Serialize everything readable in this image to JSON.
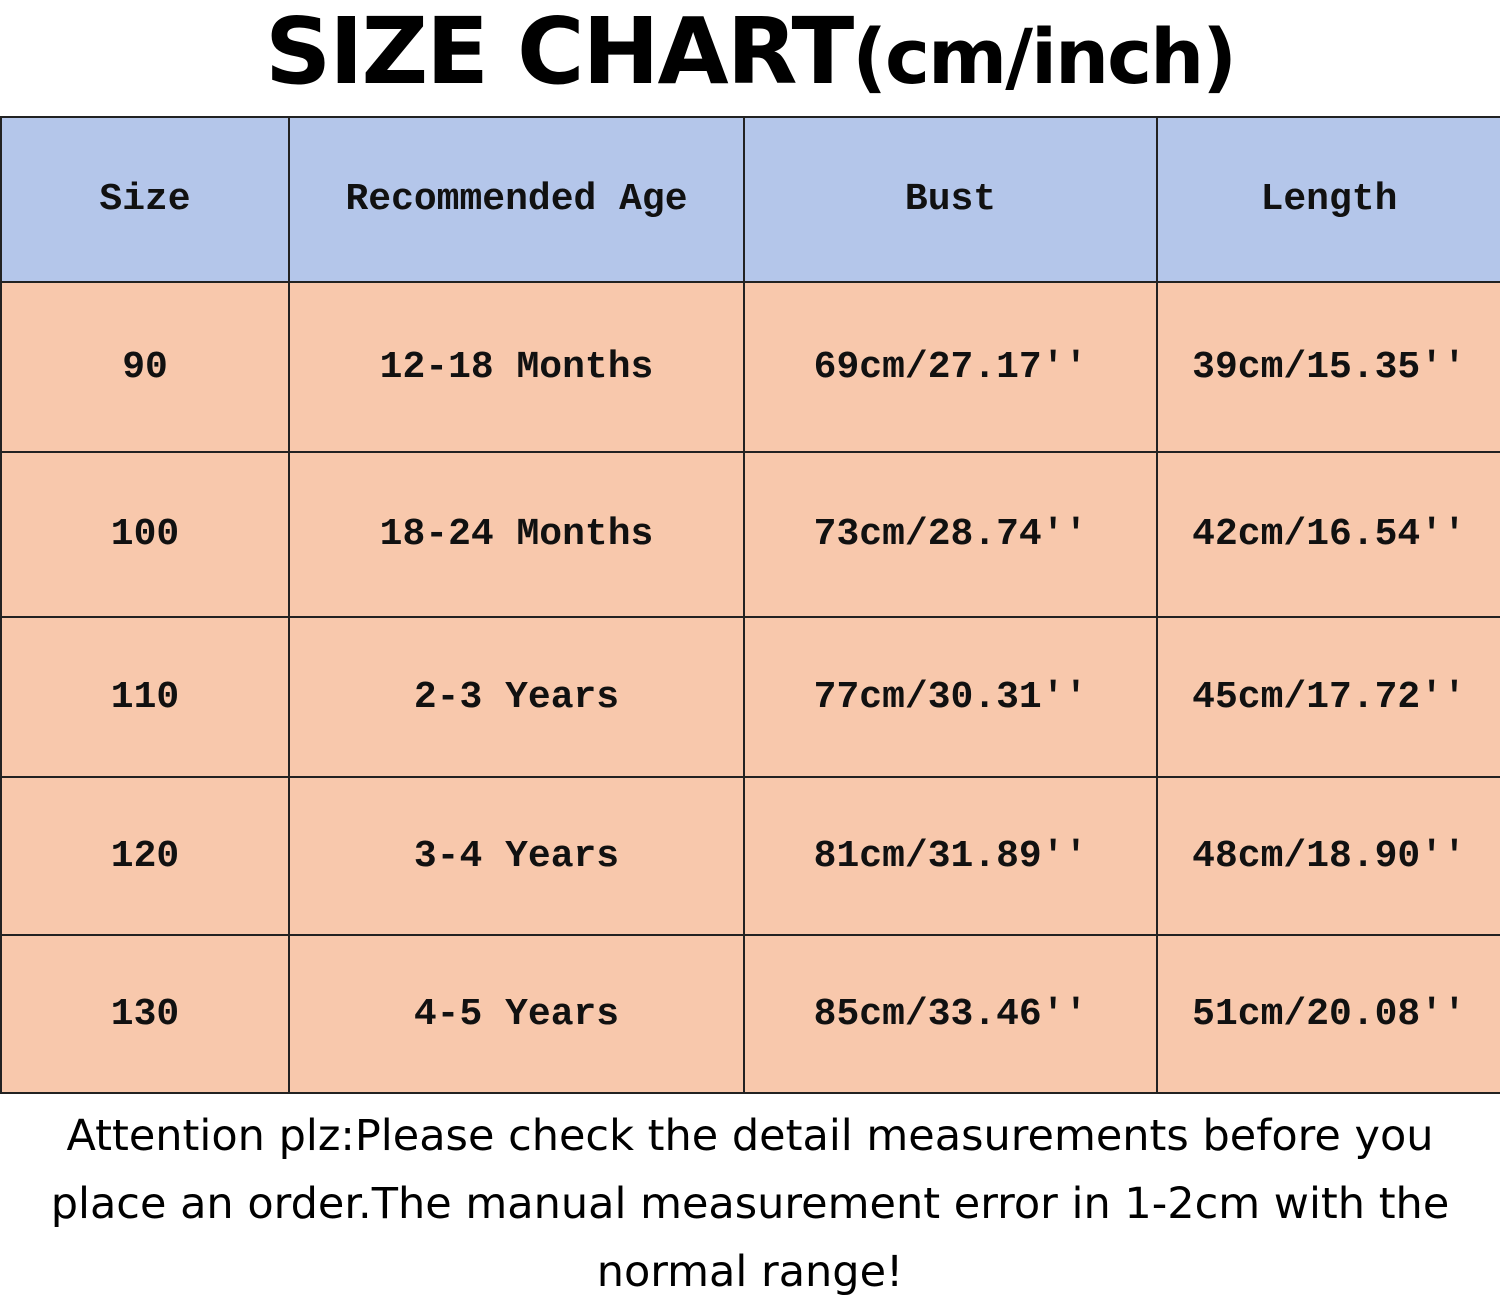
{
  "header": {
    "title": "SIZE CHART",
    "unit": "(cm/inch)"
  },
  "table": {
    "columns": [
      "Size",
      "Recommended Age",
      "Bust",
      "Length"
    ],
    "rows": [
      [
        "90",
        "12-18 Months",
        "69cm/27.17''",
        "39cm/15.35''"
      ],
      [
        "100",
        "18-24 Months",
        "73cm/28.74''",
        "42cm/16.54''"
      ],
      [
        "110",
        "2-3 Years",
        "77cm/30.31''",
        "45cm/17.72''"
      ],
      [
        "120",
        "3-4 Years",
        "81cm/31.89''",
        "48cm/18.90''"
      ],
      [
        "130",
        "4-5 Years",
        "85cm/33.46''",
        "51cm/20.08''"
      ]
    ]
  },
  "note": "Attention plz:Please check the detail measurements before you place an order.The manual measurement error in 1-2cm with the normal range!"
}
